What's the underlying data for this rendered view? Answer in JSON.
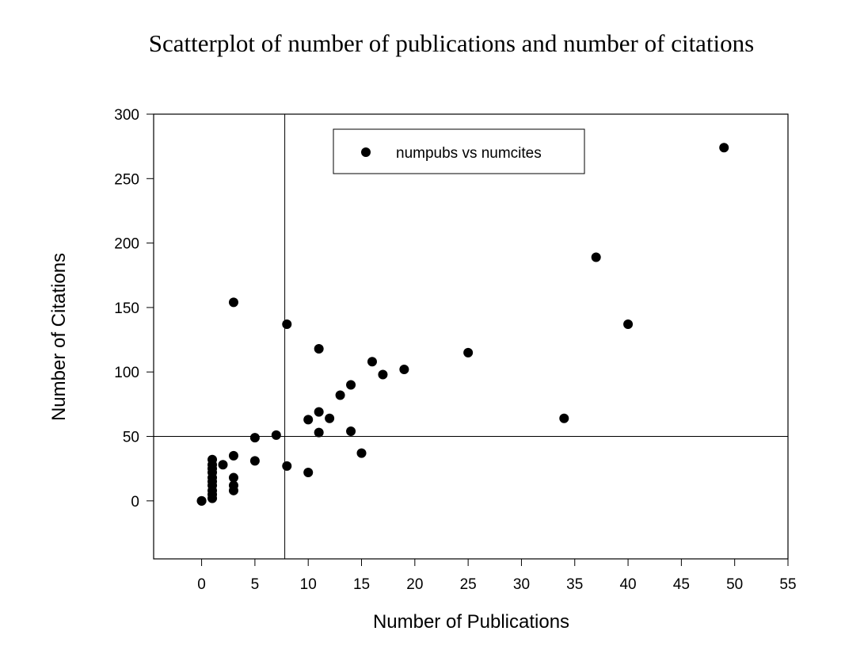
{
  "chart_data": {
    "type": "scatter",
    "title": "Scatterplot of number of publications and number of citations",
    "xlabel": "Number of Publications",
    "ylabel": "Number of Citations",
    "xlim": [
      -4.5,
      55
    ],
    "ylim": [
      -45,
      300
    ],
    "xticks": [
      0,
      5,
      10,
      15,
      20,
      25,
      30,
      35,
      40,
      45,
      50,
      55
    ],
    "yticks": [
      0,
      50,
      100,
      150,
      200,
      250,
      300
    ],
    "grid": false,
    "legend_position": "top-center",
    "reference_lines": {
      "x": 7.8,
      "y": 50
    },
    "series": [
      {
        "name": "numpubs vs numcites",
        "color": "#000000",
        "marker": "circle",
        "points": [
          [
            0,
            0
          ],
          [
            0,
            0
          ],
          [
            1,
            2
          ],
          [
            1,
            5
          ],
          [
            1,
            8
          ],
          [
            1,
            12
          ],
          [
            1,
            15
          ],
          [
            1,
            18
          ],
          [
            1,
            22
          ],
          [
            1,
            25
          ],
          [
            1,
            28
          ],
          [
            1,
            32
          ],
          [
            2,
            28
          ],
          [
            3,
            8
          ],
          [
            3,
            12
          ],
          [
            3,
            18
          ],
          [
            3,
            35
          ],
          [
            3,
            154
          ],
          [
            5,
            31
          ],
          [
            5,
            49
          ],
          [
            7,
            51
          ],
          [
            8,
            27
          ],
          [
            8,
            137
          ],
          [
            10,
            22
          ],
          [
            10,
            63
          ],
          [
            11,
            53
          ],
          [
            11,
            69
          ],
          [
            11,
            118
          ],
          [
            12,
            64
          ],
          [
            13,
            82
          ],
          [
            14,
            54
          ],
          [
            14,
            90
          ],
          [
            15,
            37
          ],
          [
            16,
            108
          ],
          [
            17,
            98
          ],
          [
            19,
            102
          ],
          [
            25,
            115
          ],
          [
            34,
            64
          ],
          [
            37,
            189
          ],
          [
            40,
            137
          ],
          [
            49,
            274
          ]
        ]
      }
    ]
  }
}
